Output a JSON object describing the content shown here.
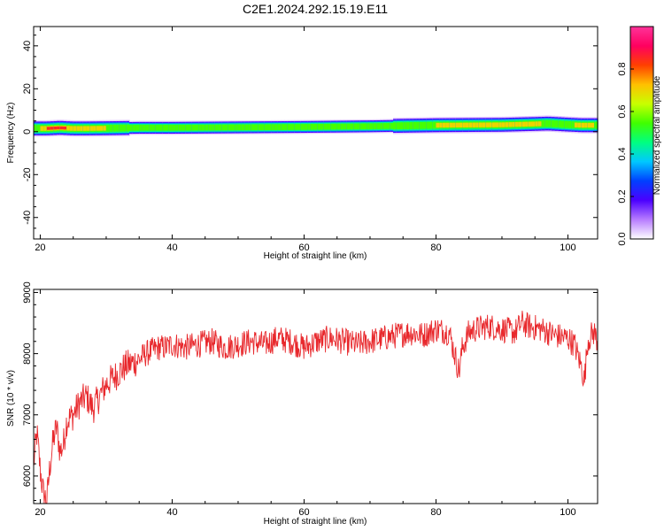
{
  "title": "C2E1.2024.292.15.19.E11",
  "chart_data": [
    {
      "type": "heatmap",
      "xlabel": "Height of straight line (km)",
      "ylabel": "Frequency (Hz)",
      "xlim": [
        19,
        104.5
      ],
      "ylim": [
        -50,
        49
      ],
      "xticks": [
        20,
        40,
        60,
        80,
        100
      ],
      "yticks": [
        -40,
        -20,
        0,
        20,
        40
      ],
      "colorbar": {
        "label": "Normalized spectral amplitude",
        "range": [
          0,
          1
        ],
        "ticks": [
          "0.0",
          "0.2",
          "0.4",
          "0.6",
          "0.8"
        ],
        "colors": [
          "#ffffff",
          "#b77cff",
          "#4b00ff",
          "#0040ff",
          "#00c8ff",
          "#00ff80",
          "#40ff00",
          "#c8ff00",
          "#ffc000",
          "#ff4000",
          "#ff0060",
          "#ff3399"
        ]
      },
      "ridge": {
        "x": [
          19.5,
          21,
          23,
          25,
          27,
          30,
          35,
          40,
          50,
          60,
          70,
          80,
          90,
          95,
          97,
          100,
          102,
          104.5
        ],
        "center_hz": [
          1.5,
          1.5,
          1.8,
          1.5,
          1.5,
          1.6,
          1.8,
          1.8,
          2.0,
          2.2,
          2.5,
          3.0,
          3.2,
          3.6,
          3.8,
          3.3,
          3.0,
          3.0
        ],
        "peak_amplitude": [
          0.6,
          0.85,
          0.98,
          0.75,
          0.8,
          0.7,
          0.55,
          0.55,
          0.55,
          0.55,
          0.55,
          0.7,
          0.8,
          0.85,
          0.6,
          0.6,
          0.85,
          0.65
        ]
      }
    },
    {
      "type": "line",
      "xlabel": "Height of straight line (km)",
      "ylabel": "SNR (10 * v/v)",
      "xlim": [
        19,
        104.5
      ],
      "ylim": [
        5550,
        9050
      ],
      "xticks": [
        20,
        40,
        60,
        80,
        100
      ],
      "yticks": [
        6000,
        7000,
        8000,
        9000
      ],
      "line_color": "#e8282c",
      "series": [
        {
          "x": [
            19,
            19.5,
            20,
            20.5,
            21,
            21.5,
            22,
            22.5,
            23,
            23.5,
            24,
            25,
            26,
            27,
            28,
            29,
            30,
            31,
            32,
            33,
            34,
            35,
            36,
            37,
            38,
            39,
            40,
            42,
            44,
            46,
            48,
            50,
            52,
            54,
            56,
            58,
            60,
            62,
            64,
            66,
            68,
            70,
            72,
            74,
            76,
            78,
            80,
            82,
            83.5,
            84,
            85,
            86,
            88,
            90,
            92,
            93,
            94,
            96,
            98,
            100,
            101,
            102,
            102.5,
            103,
            103.5,
            104,
            104.5
          ],
          "values": [
            6200,
            6700,
            6100,
            5700,
            5600,
            6200,
            6600,
            6800,
            6400,
            6500,
            6900,
            7000,
            7200,
            7300,
            7100,
            7300,
            7500,
            7600,
            7700,
            7800,
            7850,
            7900,
            8000,
            8050,
            8100,
            8100,
            8150,
            8100,
            8150,
            8200,
            8100,
            8150,
            8200,
            8150,
            8250,
            8200,
            8100,
            8200,
            8250,
            8200,
            8150,
            8200,
            8250,
            8300,
            8350,
            8300,
            8400,
            8350,
            7700,
            8100,
            8350,
            8400,
            8450,
            8400,
            8350,
            8500,
            8450,
            8400,
            8300,
            8250,
            8150,
            7800,
            7550,
            8200,
            8300,
            8350,
            8200
          ]
        }
      ]
    }
  ]
}
